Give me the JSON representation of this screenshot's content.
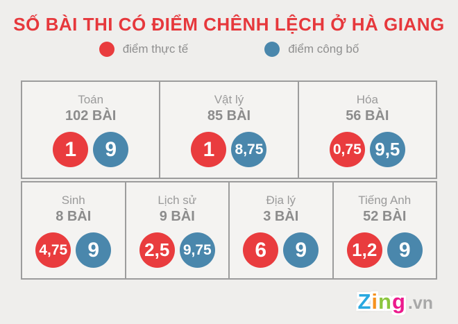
{
  "title": "SỐ BÀI THI CÓ ĐIỂM CHÊNH LỆCH Ở HÀ GIANG",
  "legend": {
    "actual": {
      "label": "điểm thực tế",
      "color": "#e93c3e"
    },
    "published": {
      "label": "điểm công bố",
      "color": "#4a87ac"
    }
  },
  "colors": {
    "title_red": "#e6383c",
    "circle_red": "#e93c3e",
    "circle_blue": "#4a87ac",
    "page_background": "#efeeec",
    "card_background": "#f4f3f1",
    "card_border": "#9c9c9c",
    "text_gray": "#8c8c8c"
  },
  "rows": [
    {
      "cards": [
        {
          "name": "Toán",
          "count": "102 BÀI",
          "actual": "1",
          "published": "9"
        },
        {
          "name": "Vật lý",
          "count": "85 BÀI",
          "actual": "1",
          "published": "8,75"
        },
        {
          "name": "Hóa",
          "count": "56 BÀI",
          "actual": "0,75",
          "published": "9,5"
        }
      ]
    },
    {
      "cards": [
        {
          "name": "Sinh",
          "count": "8 BÀI",
          "actual": "4,75",
          "published": "9"
        },
        {
          "name": "Lịch sử",
          "count": "9 BÀI",
          "actual": "2,5",
          "published": "9,75"
        },
        {
          "name": "Địa lý",
          "count": "3 BÀI",
          "actual": "6",
          "published": "9"
        },
        {
          "name": "Tiếng Anh",
          "count": "52 BÀI",
          "actual": "1,2",
          "published": "9"
        }
      ]
    }
  ],
  "chart_data": {
    "type": "table",
    "title": "SỐ BÀI THI CÓ ĐIỂM CHÊNH LỆCH Ở HÀ GIANG",
    "categories": [
      "Toán",
      "Vật lý",
      "Hóa",
      "Sinh",
      "Lịch sử",
      "Địa lý",
      "Tiếng Anh"
    ],
    "papers_with_discrepancy": [
      102,
      85,
      56,
      8,
      9,
      3,
      52
    ],
    "series": [
      {
        "name": "điểm thực tế",
        "color": "#e93c3e",
        "values": [
          1,
          1,
          0.75,
          4.75,
          2.5,
          6,
          1.2
        ]
      },
      {
        "name": "điểm công bố",
        "color": "#4a87ac",
        "values": [
          9,
          8.75,
          9.5,
          9,
          9.75,
          9,
          9
        ]
      }
    ],
    "legend_position": "top",
    "value_range": [
      0,
      10
    ]
  },
  "logo": {
    "letters": [
      {
        "char": "Z",
        "color": "#29a8e0"
      },
      {
        "char": "i",
        "color": "#f6921e"
      },
      {
        "char": "n",
        "color": "#8cc63f"
      },
      {
        "char": "g",
        "color": "#ec1a8d"
      }
    ],
    "suffix": ".vn"
  }
}
